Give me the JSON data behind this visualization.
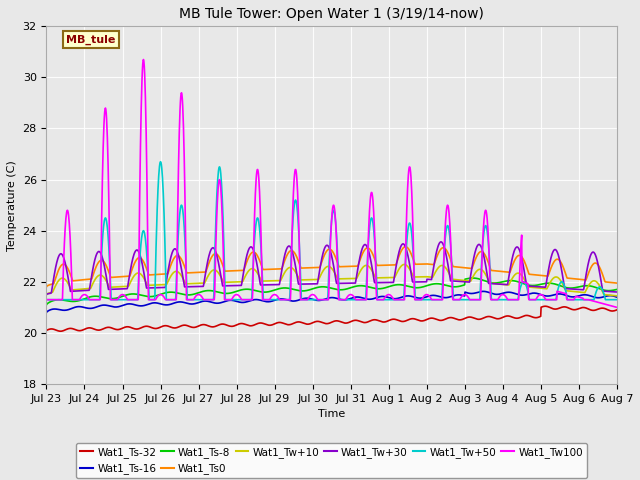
{
  "title": "MB Tule Tower: Open Water 1 (3/19/14-now)",
  "xlabel": "Time",
  "ylabel": "Temperature (C)",
  "ylim": [
    18,
    32
  ],
  "yticks": [
    18,
    20,
    22,
    24,
    26,
    28,
    30,
    32
  ],
  "fig_bg": "#e8e8e8",
  "plot_bg": "#e8e8e8",
  "legend_label": "MB_tule",
  "series_colors": {
    "Wat1_Ts-32": "#cc0000",
    "Wat1_Ts-16": "#0000cc",
    "Wat1_Ts-8": "#00cc00",
    "Wat1_Ts0": "#ff8800",
    "Wat1_Tw+10": "#cccc00",
    "Wat1_Tw+30": "#8800cc",
    "Wat1_Tw+50": "#00cccc",
    "Wat1_Tw100": "#ff00ff"
  },
  "date_labels": [
    "Jul 23",
    "Jul 24",
    "Jul 25",
    "Jul 26",
    "Jul 27",
    "Jul 28",
    "Jul 29",
    "Jul 30",
    "Jul 31",
    "Aug 1",
    "Aug 2",
    "Aug 3",
    "Aug 4",
    "Aug 5",
    "Aug 6",
    "Aug 7"
  ],
  "legend_order": [
    "Wat1_Ts-32",
    "Wat1_Ts-16",
    "Wat1_Ts-8",
    "Wat1_Ts0",
    "Wat1_Tw+10",
    "Wat1_Tw+30",
    "Wat1_Tw+50",
    "Wat1_Tw100"
  ]
}
